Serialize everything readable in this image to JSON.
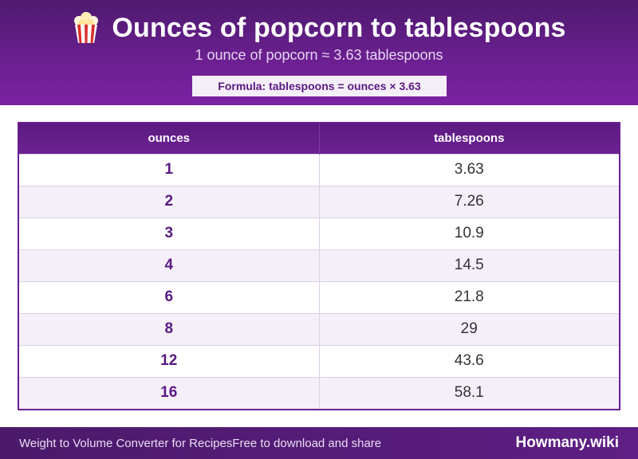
{
  "header": {
    "icon": "popcorn-icon",
    "title": "Ounces of popcorn to tablespoons",
    "subtitle": "1 ounce of popcorn ≈ 3.63 tablespoons",
    "formula": "Formula: tablespoons = ounces × 3.63"
  },
  "table": {
    "columns": [
      "ounces",
      "tablespoons"
    ],
    "rows": [
      {
        "ounces": "1",
        "tablespoons": "3.63"
      },
      {
        "ounces": "2",
        "tablespoons": "7.26"
      },
      {
        "ounces": "3",
        "tablespoons": "10.9"
      },
      {
        "ounces": "4",
        "tablespoons": "14.5"
      },
      {
        "ounces": "6",
        "tablespoons": "21.8"
      },
      {
        "ounces": "8",
        "tablespoons": "29"
      },
      {
        "ounces": "12",
        "tablespoons": "43.6"
      },
      {
        "ounces": "16",
        "tablespoons": "58.1"
      }
    ]
  },
  "footer": {
    "left": "Weight to Volume Converter for Recipes",
    "middle": "Free to download and share",
    "brand": "Howmany.wiki"
  },
  "colors": {
    "brand_purple": "#6a1f8f",
    "accent_text": "#5a1a80",
    "row_alt": "#f4eff9"
  }
}
